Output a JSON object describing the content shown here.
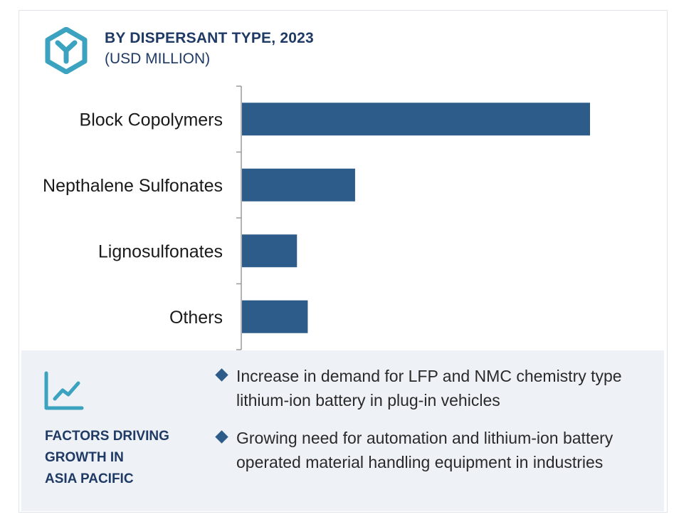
{
  "header": {
    "title": "BY DISPERSANT TYPE, 2023",
    "subtitle": "(USD MILLION)",
    "icon": "hexagon-y-logo-icon"
  },
  "colors": {
    "bar": "#2d5b8a",
    "title": "#1f3a64",
    "accent": "#3ba3bf",
    "panel": "#eef1f6"
  },
  "chart_data": {
    "type": "bar",
    "orientation": "horizontal",
    "title": "BY DISPERSANT TYPE, 2023",
    "subtitle": "(USD MILLION)",
    "categories": [
      "Block Copolymers",
      "Nepthalene Sulfonates",
      "Lignosulfonates",
      "Others"
    ],
    "values": [
      100,
      32.5,
      15.8,
      18.9
    ],
    "value_note": "relative bar lengths; no axis values shown",
    "xlim": [
      0,
      100
    ],
    "grid": false,
    "legend": "none"
  },
  "factors": {
    "icon": "trend-chart-icon",
    "heading_lines": [
      "FACTORS DRIVING",
      "GROWTH IN",
      "ASIA PACIFIC"
    ],
    "bullets": [
      "Increase in demand for LFP and NMC chemistry type lithium-ion battery in plug-in vehicles",
      "Growing need for automation and lithium-ion battery operated material handling equipment in industries"
    ]
  }
}
